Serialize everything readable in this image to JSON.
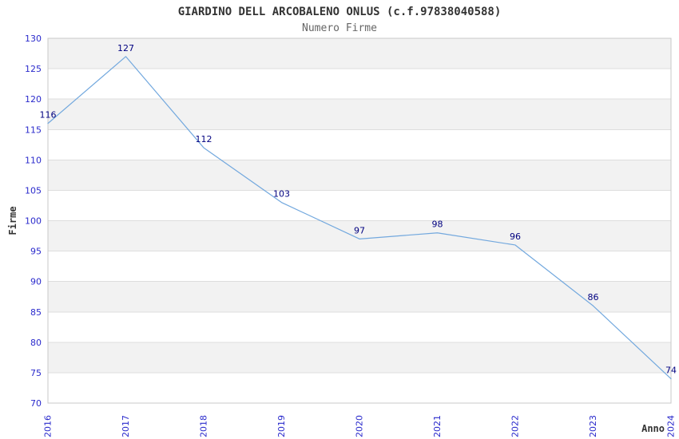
{
  "chart_data": {
    "type": "line",
    "title": "GIARDINO DELL ARCOBALENO ONLUS (c.f.97838040588)",
    "subtitle": "Numero Firme",
    "xlabel": "Anno",
    "ylabel": "Firme",
    "x": [
      "2016",
      "2017",
      "2018",
      "2019",
      "2020",
      "2021",
      "2022",
      "2023",
      "2024"
    ],
    "series": [
      {
        "name": "Numero Firme",
        "values": [
          116,
          127,
          112,
          103,
          97,
          98,
          96,
          86,
          74
        ]
      }
    ],
    "ylim": [
      70,
      130
    ],
    "ytick_step": 5,
    "yticks": [
      70,
      75,
      80,
      85,
      90,
      95,
      100,
      105,
      110,
      115,
      120,
      125,
      130
    ],
    "grid": "alternating-horizontal-bands",
    "legend": "none",
    "data_labels_visible": true
  },
  "colors": {
    "line": "#72A8DE",
    "tick_label": "#2A2ACC",
    "data_label": "#000080",
    "band_gray": "#F2F2F2",
    "band_white": "#FFFFFF",
    "band_border": "#DDDDDD",
    "plot_border": "#C8C8C8",
    "title_text": "#333333",
    "subtitle_text": "#666666",
    "axis_title_text": "#333333",
    "background": "#FFFFFF"
  }
}
